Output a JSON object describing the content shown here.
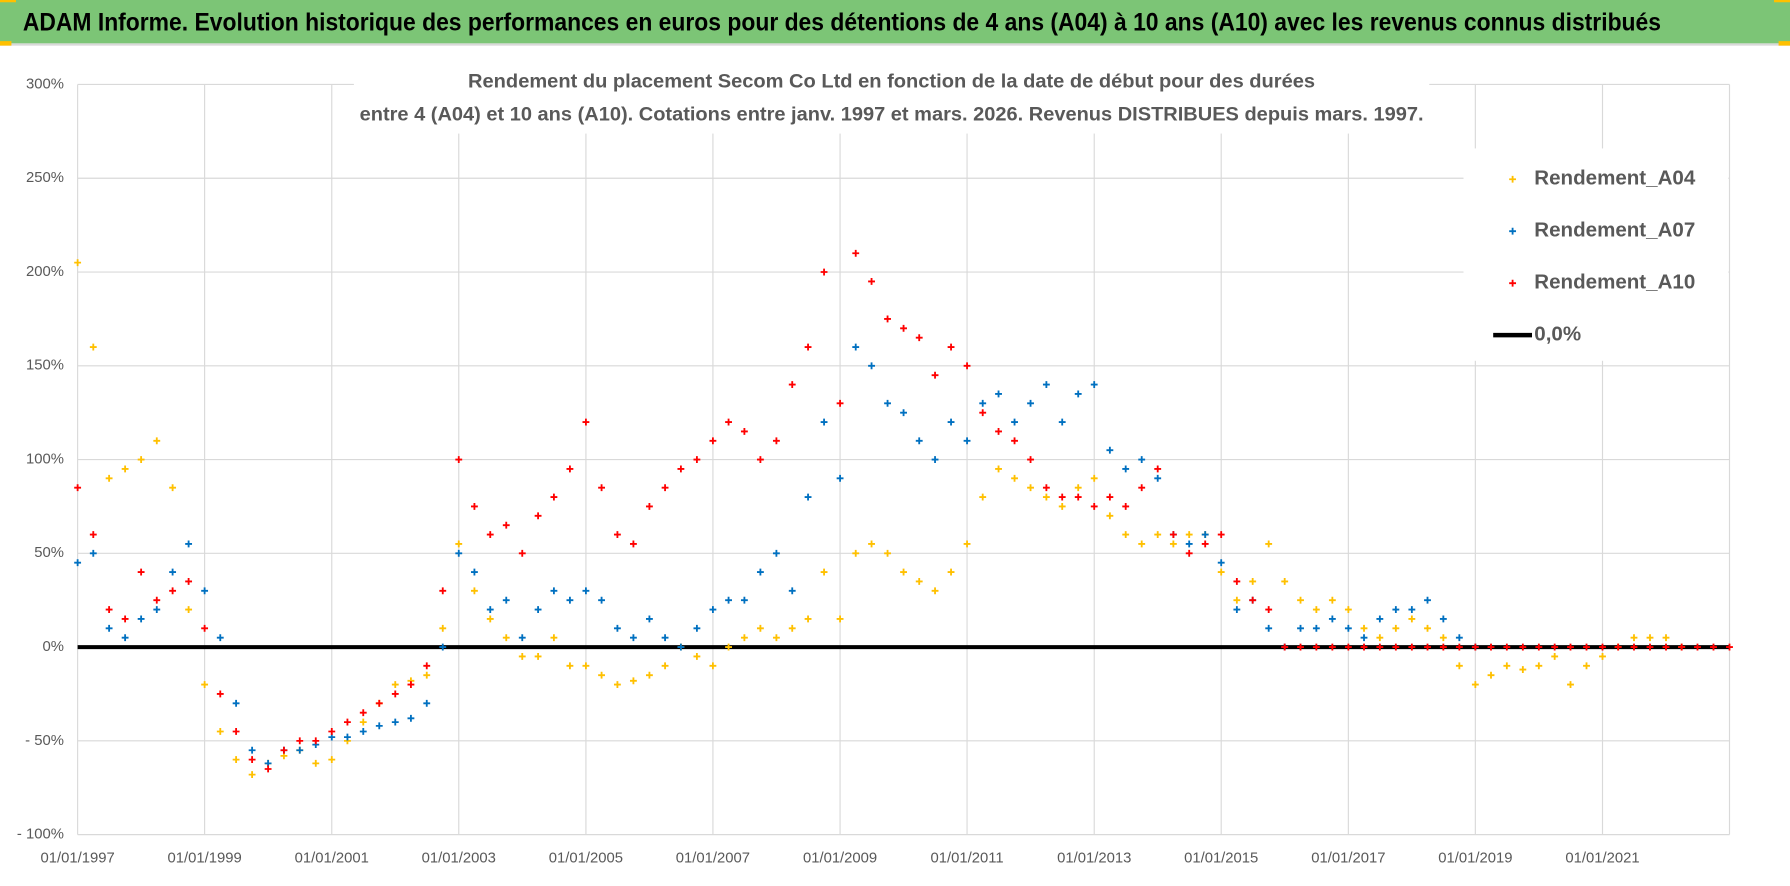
{
  "header": {
    "title": "ADAM Informe. Evolution historique des performances en euros pour des détentions de 4 ans (A04) à 10 ans (A10) avec les revenus connus distribués"
  },
  "chart_data": {
    "type": "scatter",
    "title": [
      "Rendement du placement Secom  Co Ltd en fonction de la date de début pour des durées",
      "entre 4 (A04) et 10 ans (A10). Cotations entre janv. 1997 et mars. 2026. Revenus DISTRIBUES depuis mars. 1997."
    ],
    "xlim": [
      "1997-01-01",
      "2023-01-01"
    ],
    "xticks": [
      {
        "value": "1997-01-01",
        "label": "01/01/1997"
      },
      {
        "value": "1999-01-01",
        "label": "01/01/1999"
      },
      {
        "value": "2001-01-01",
        "label": "01/01/2001"
      },
      {
        "value": "2003-01-01",
        "label": "01/01/2003"
      },
      {
        "value": "2005-01-01",
        "label": "01/01/2005"
      },
      {
        "value": "2007-01-01",
        "label": "01/01/2007"
      },
      {
        "value": "2009-01-01",
        "label": "01/01/2009"
      },
      {
        "value": "2011-01-01",
        "label": "01/01/2011"
      },
      {
        "value": "2013-01-01",
        "label": "01/01/2013"
      },
      {
        "value": "2015-01-01",
        "label": "01/01/2015"
      },
      {
        "value": "2017-01-01",
        "label": "01/01/2017"
      },
      {
        "value": "2019-01-01",
        "label": "01/01/2019"
      },
      {
        "value": "2021-01-01",
        "label": "01/01/2021"
      }
    ],
    "ylim": [
      -100,
      300
    ],
    "yticks": [
      {
        "value": -100,
        "label": "- 100%"
      },
      {
        "value": -50,
        "label": "- 50%"
      },
      {
        "value": 0,
        "label": "0%"
      },
      {
        "value": 50,
        "label": "50%"
      },
      {
        "value": 100,
        "label": "100%"
      },
      {
        "value": 150,
        "label": "150%"
      },
      {
        "value": 200,
        "label": "200%"
      },
      {
        "value": 250,
        "label": "250%"
      },
      {
        "value": 300,
        "label": "300%"
      }
    ],
    "grid": true,
    "legend": "right",
    "series": [
      {
        "name": "Rendement_A04",
        "color": "#ffc000",
        "x": [
          "1997-01-01",
          "1997-04-01",
          "1997-07-01",
          "1997-10-01",
          "1998-01-01",
          "1998-04-01",
          "1998-07-01",
          "1998-10-01",
          "1999-01-01",
          "1999-04-01",
          "1999-07-01",
          "1999-10-01",
          "2000-01-01",
          "2000-04-01",
          "2000-07-01",
          "2000-10-01",
          "2001-01-01",
          "2001-04-01",
          "2001-07-01",
          "2001-10-01",
          "2002-01-01",
          "2002-04-01",
          "2002-07-01",
          "2002-10-01",
          "2003-01-01",
          "2003-04-01",
          "2003-07-01",
          "2003-10-01",
          "2004-01-01",
          "2004-04-01",
          "2004-07-01",
          "2004-10-01",
          "2005-01-01",
          "2005-04-01",
          "2005-07-01",
          "2005-10-01",
          "2006-01-01",
          "2006-04-01",
          "2006-07-01",
          "2006-10-01",
          "2007-01-01",
          "2007-04-01",
          "2007-07-01",
          "2007-10-01",
          "2008-01-01",
          "2008-04-01",
          "2008-07-01",
          "2008-10-01",
          "2009-01-01",
          "2009-04-01",
          "2009-07-01",
          "2009-10-01",
          "2010-01-01",
          "2010-04-01",
          "2010-07-01",
          "2010-10-01",
          "2011-01-01",
          "2011-04-01",
          "2011-07-01",
          "2011-10-01",
          "2012-01-01",
          "2012-04-01",
          "2012-07-01",
          "2012-10-01",
          "2013-01-01",
          "2013-04-01",
          "2013-07-01",
          "2013-10-01",
          "2014-01-01",
          "2014-04-01",
          "2014-07-01",
          "2014-10-01",
          "2015-01-01",
          "2015-04-01",
          "2015-07-01",
          "2015-10-01",
          "2016-01-01",
          "2016-04-01",
          "2016-07-01",
          "2016-10-01",
          "2017-01-01",
          "2017-04-01",
          "2017-07-01",
          "2017-10-01",
          "2018-01-01",
          "2018-04-01",
          "2018-07-01",
          "2018-10-01",
          "2019-01-01",
          "2019-04-01",
          "2019-07-01",
          "2019-10-01",
          "2020-01-01",
          "2020-04-01",
          "2020-07-01",
          "2020-10-01",
          "2021-01-01",
          "2021-04-01",
          "2021-07-01",
          "2021-10-01",
          "2022-01-01",
          "2022-04-01"
        ],
        "values": [
          205,
          160,
          90,
          95,
          100,
          110,
          85,
          20,
          -20,
          -45,
          -60,
          -68,
          -62,
          -58,
          -55,
          -62,
          -60,
          -50,
          -40,
          -30,
          -20,
          -18,
          -15,
          10,
          55,
          30,
          15,
          5,
          -5,
          -5,
          5,
          -10,
          -10,
          -15,
          -20,
          -18,
          -15,
          -10,
          0,
          -5,
          -10,
          0,
          5,
          10,
          5,
          10,
          15,
          40,
          15,
          50,
          55,
          50,
          40,
          35,
          30,
          40,
          55,
          80,
          95,
          90,
          85,
          80,
          75,
          85,
          90,
          70,
          60,
          55,
          60,
          55,
          60,
          60,
          40,
          25,
          35,
          55,
          35,
          25,
          20,
          25,
          20,
          10,
          5,
          10,
          15,
          10,
          5,
          -10,
          -20,
          -15,
          -10,
          -12,
          -10,
          -5,
          -20,
          -10,
          -5,
          0,
          5,
          5,
          5,
          0
        ]
      },
      {
        "name": "Rendement_A07",
        "color": "#0070c0",
        "x": [
          "1997-01-01",
          "1997-04-01",
          "1997-07-01",
          "1997-10-01",
          "1998-01-01",
          "1998-04-01",
          "1998-07-01",
          "1998-10-01",
          "1999-01-01",
          "1999-04-01",
          "1999-07-01",
          "1999-10-01",
          "2000-01-01",
          "2000-04-01",
          "2000-07-01",
          "2000-10-01",
          "2001-01-01",
          "2001-04-01",
          "2001-07-01",
          "2001-10-01",
          "2002-01-01",
          "2002-04-01",
          "2002-07-01",
          "2002-10-01",
          "2003-01-01",
          "2003-04-01",
          "2003-07-01",
          "2003-10-01",
          "2004-01-01",
          "2004-04-01",
          "2004-07-01",
          "2004-10-01",
          "2005-01-01",
          "2005-04-01",
          "2005-07-01",
          "2005-10-01",
          "2006-01-01",
          "2006-04-01",
          "2006-07-01",
          "2006-10-01",
          "2007-01-01",
          "2007-04-01",
          "2007-07-01",
          "2007-10-01",
          "2008-01-01",
          "2008-04-01",
          "2008-07-01",
          "2008-10-01",
          "2009-01-01",
          "2009-04-01",
          "2009-07-01",
          "2009-10-01",
          "2010-01-01",
          "2010-04-01",
          "2010-07-01",
          "2010-10-01",
          "2011-01-01",
          "2011-04-01",
          "2011-07-01",
          "2011-10-01",
          "2012-01-01",
          "2012-04-01",
          "2012-07-01",
          "2012-10-01",
          "2013-01-01",
          "2013-04-01",
          "2013-07-01",
          "2013-10-01",
          "2014-01-01",
          "2014-04-01",
          "2014-07-01",
          "2014-10-01",
          "2015-01-01",
          "2015-04-01",
          "2015-07-01",
          "2015-10-01",
          "2016-01-01",
          "2016-04-01",
          "2016-07-01",
          "2016-10-01",
          "2017-01-01",
          "2017-04-01",
          "2017-07-01",
          "2017-10-01",
          "2018-01-01",
          "2018-04-01",
          "2018-07-01",
          "2018-10-01",
          "2019-01-01"
        ],
        "values": [
          45,
          50,
          10,
          5,
          15,
          20,
          40,
          55,
          30,
          5,
          -30,
          -55,
          -62,
          -55,
          -55,
          -52,
          -48,
          -48,
          -45,
          -42,
          -40,
          -38,
          -30,
          0,
          50,
          40,
          20,
          25,
          5,
          20,
          30,
          25,
          30,
          25,
          10,
          5,
          15,
          5,
          0,
          10,
          20,
          25,
          25,
          40,
          50,
          30,
          80,
          120,
          90,
          160,
          150,
          130,
          125,
          110,
          100,
          120,
          110,
          130,
          135,
          120,
          130,
          140,
          120,
          135,
          140,
          105,
          95,
          100,
          90,
          60,
          55,
          60,
          45,
          20,
          25,
          10,
          0,
          10,
          10,
          15,
          10,
          5,
          15,
          20,
          20,
          25,
          15,
          5,
          0
        ]
      },
      {
        "name": "Rendement_A10",
        "color": "#ff0000",
        "x": [
          "1997-01-01",
          "1997-04-01",
          "1997-07-01",
          "1997-10-01",
          "1998-01-01",
          "1998-04-01",
          "1998-07-01",
          "1998-10-01",
          "1999-01-01",
          "1999-04-01",
          "1999-07-01",
          "1999-10-01",
          "2000-01-01",
          "2000-04-01",
          "2000-07-01",
          "2000-10-01",
          "2001-01-01",
          "2001-04-01",
          "2001-07-01",
          "2001-10-01",
          "2002-01-01",
          "2002-04-01",
          "2002-07-01",
          "2002-10-01",
          "2003-01-01",
          "2003-04-01",
          "2003-07-01",
          "2003-10-01",
          "2004-01-01",
          "2004-04-01",
          "2004-07-01",
          "2004-10-01",
          "2005-01-01",
          "2005-04-01",
          "2005-07-01",
          "2005-10-01",
          "2006-01-01",
          "2006-04-01",
          "2006-07-01",
          "2006-10-01",
          "2007-01-01",
          "2007-04-01",
          "2007-07-01",
          "2007-10-01",
          "2008-01-01",
          "2008-04-01",
          "2008-07-01",
          "2008-10-01",
          "2009-01-01",
          "2009-04-01",
          "2009-07-01",
          "2009-10-01",
          "2010-01-01",
          "2010-04-01",
          "2010-07-01",
          "2010-10-01",
          "2011-01-01",
          "2011-04-01",
          "2011-07-01",
          "2011-10-01",
          "2012-01-01",
          "2012-04-01",
          "2012-07-01",
          "2012-10-01",
          "2013-01-01",
          "2013-04-01",
          "2013-07-01",
          "2013-10-01",
          "2014-01-01",
          "2014-04-01",
          "2014-07-01",
          "2014-10-01",
          "2015-01-01",
          "2015-04-01",
          "2015-07-01",
          "2015-10-01",
          "2016-01-01",
          "2016-04-01",
          "2016-07-01",
          "2016-10-01",
          "2017-01-01",
          "2017-04-01",
          "2017-07-01",
          "2017-10-01",
          "2018-01-01",
          "2018-04-01",
          "2018-07-01",
          "2018-10-01",
          "2019-01-01",
          "2019-04-01",
          "2019-07-01",
          "2019-10-01",
          "2020-01-01",
          "2020-04-01",
          "2020-07-01",
          "2020-10-01",
          "2021-01-01",
          "2021-04-01",
          "2021-07-01",
          "2021-10-01",
          "2022-01-01",
          "2022-04-01",
          "2022-07-01",
          "2022-10-01",
          "2023-01-01"
        ],
        "values": [
          85,
          60,
          20,
          15,
          40,
          25,
          30,
          35,
          10,
          -25,
          -45,
          -60,
          -65,
          -55,
          -50,
          -50,
          -45,
          -40,
          -35,
          -30,
          -25,
          -20,
          -10,
          30,
          100,
          75,
          60,
          65,
          50,
          70,
          80,
          95,
          120,
          85,
          60,
          55,
          75,
          85,
          95,
          100,
          110,
          120,
          115,
          100,
          110,
          140,
          160,
          200,
          130,
          210,
          195,
          175,
          170,
          165,
          145,
          160,
          150,
          125,
          115,
          110,
          100,
          85,
          80,
          80,
          75,
          80,
          75,
          85,
          95,
          60,
          50,
          55,
          60,
          35,
          25,
          20,
          0,
          0,
          0,
          0,
          0,
          0,
          0,
          0,
          0,
          0,
          0,
          0,
          0,
          0,
          0,
          0,
          0,
          0,
          0,
          0,
          0,
          0,
          0,
          0,
          0,
          0,
          0,
          0,
          0
        ]
      },
      {
        "name": "0,0%",
        "color": "#000000",
        "type": "line",
        "x": [
          "1997-01-01",
          "2023-01-01"
        ],
        "values": [
          0,
          0
        ]
      }
    ]
  }
}
